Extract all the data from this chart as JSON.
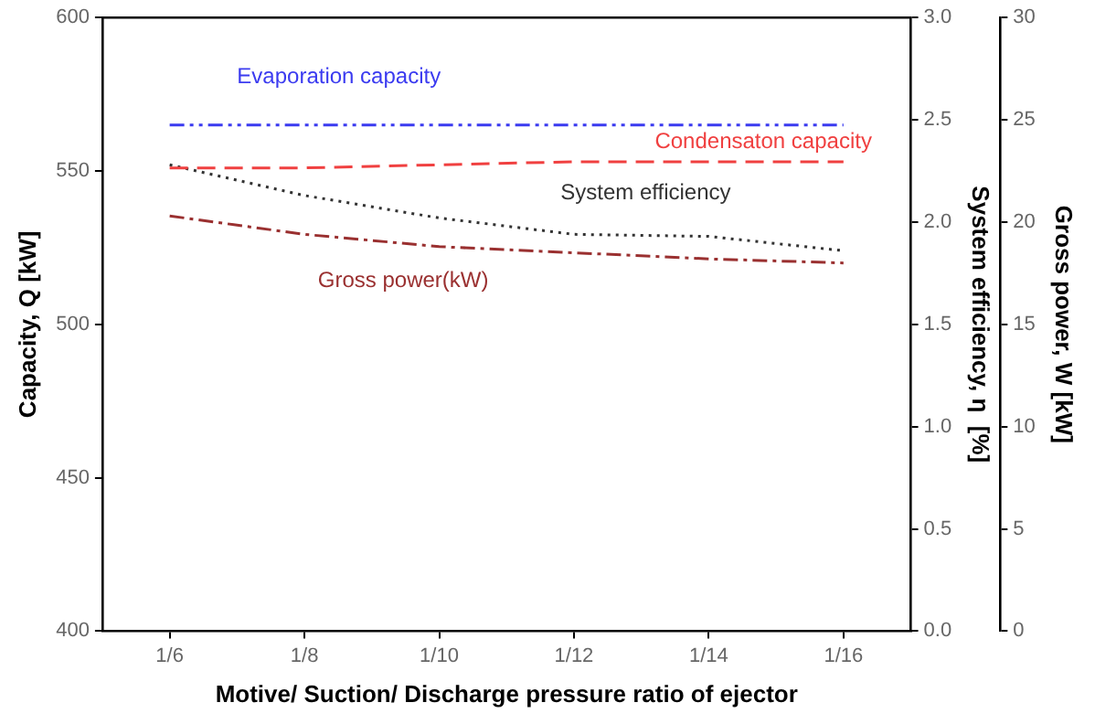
{
  "chart_data": {
    "type": "line",
    "xlabel": "Motive/ Suction/ Discharge pressure ratio of ejector",
    "ylabel": "Capacity, Q [kW]",
    "y2label": "System efficiency, η  [%]",
    "y3label": "Gross power, W [kW]",
    "categories": [
      "1/6",
      "1/8",
      "1/10",
      "1/12",
      "1/14",
      "1/16"
    ],
    "ylim": [
      400,
      600
    ],
    "yticks": [
      400,
      450,
      500,
      550,
      600
    ],
    "y2lim": [
      0,
      3
    ],
    "y2ticks": [
      {
        "value": 0,
        "label": "0.0"
      },
      {
        "value": 0.5,
        "label": "0.5"
      },
      {
        "value": 1,
        "label": "1.0"
      },
      {
        "value": 1.5,
        "label": "1.5"
      },
      {
        "value": 2,
        "label": "2.0"
      },
      {
        "value": 2.5,
        "label": "2.5"
      },
      {
        "value": 3,
        "label": "3.0"
      }
    ],
    "y3lim": [
      0,
      30
    ],
    "y3ticks": [
      0,
      5,
      10,
      15,
      20,
      25,
      30
    ],
    "grid": false,
    "legend": false,
    "marker": "none",
    "series": [
      {
        "name": "Evaporation capacity",
        "color": "#3b3bf0",
        "line_style": "dashdotdot",
        "values": [
          565,
          565,
          565,
          565,
          565,
          565
        ]
      },
      {
        "name": "Condensaton capacity",
        "color": "#f04040",
        "line_style": "dashed",
        "values": [
          551,
          551,
          552,
          553,
          553,
          553
        ]
      },
      {
        "name": "System efficiency",
        "color": "#333333",
        "line_style": "dotted",
        "axis": "y2",
        "values": [
          2.28,
          2.13,
          2.02,
          1.94,
          1.93,
          1.86
        ]
      },
      {
        "name": "Gross power(kW)",
        "color": "#9a3030",
        "line_style": "dashdot",
        "axis": "y3",
        "values": [
          20.3,
          19.4,
          18.8,
          18.5,
          18.2,
          18.0
        ]
      }
    ]
  }
}
